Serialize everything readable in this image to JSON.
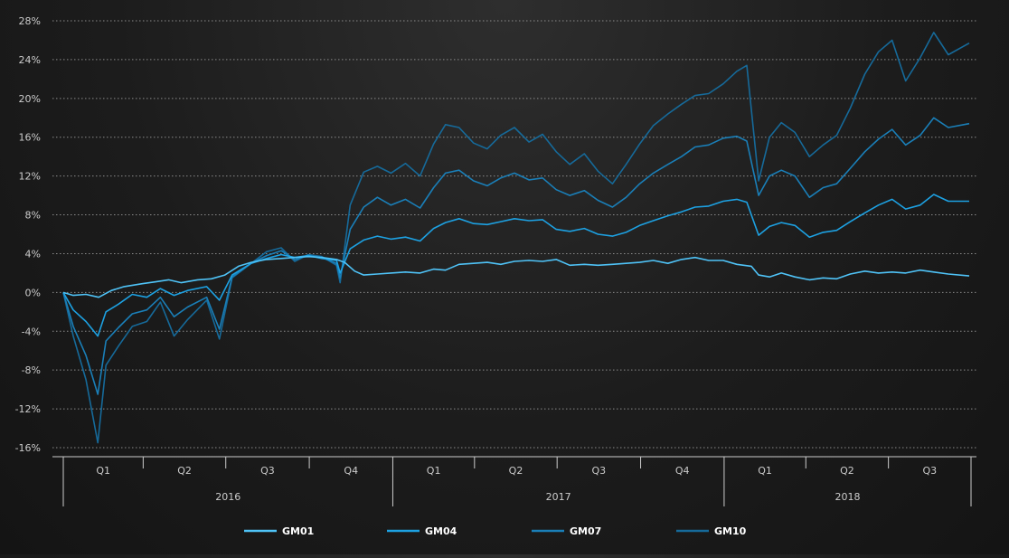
{
  "chart_data": {
    "type": "line",
    "title": "",
    "xlabel": "",
    "ylabel": "",
    "ylim": [
      -16,
      28
    ],
    "y_ticks": [
      -16,
      -12,
      -8,
      -4,
      0,
      4,
      8,
      12,
      16,
      20,
      24,
      28
    ],
    "y_tick_suffix": "%",
    "grid": "horizontal dotted",
    "legend_position": "bottom",
    "x_range": [
      "2016-01-04",
      "2018-09-28"
    ],
    "quarter_labels": [
      "Q1",
      "Q2",
      "Q3",
      "Q4",
      "Q1",
      "Q2",
      "Q3",
      "Q4",
      "Q1",
      "Q2",
      "Q3"
    ],
    "year_labels": [
      "2016",
      "2017",
      "2018"
    ],
    "colors": {
      "GM01": "#4fc3f7",
      "GM04": "#1da1e2",
      "GM07": "#1a7fb8",
      "GM10": "#166a9a",
      "axis": "#cccccc",
      "grid": "#8a8a8a"
    },
    "series": [
      {
        "name": "GM01",
        "points": [
          [
            "2016-01-04",
            0
          ],
          [
            "2016-01-15",
            -0.3
          ],
          [
            "2016-01-29",
            -0.2
          ],
          [
            "2016-02-12",
            -0.5
          ],
          [
            "2016-02-26",
            0.2
          ],
          [
            "2016-03-11",
            0.6
          ],
          [
            "2016-03-31",
            0.9
          ],
          [
            "2016-04-15",
            1.1
          ],
          [
            "2016-04-29",
            1.3
          ],
          [
            "2016-05-13",
            1.0
          ],
          [
            "2016-05-31",
            1.3
          ],
          [
            "2016-06-15",
            1.4
          ],
          [
            "2016-06-30",
            1.8
          ],
          [
            "2016-07-15",
            2.7
          ],
          [
            "2016-07-29",
            3.1
          ],
          [
            "2016-08-15",
            3.4
          ],
          [
            "2016-08-31",
            3.5
          ],
          [
            "2016-09-15",
            3.6
          ],
          [
            "2016-09-30",
            3.7
          ],
          [
            "2016-10-15",
            3.6
          ],
          [
            "2016-10-31",
            3.4
          ],
          [
            "2016-11-09",
            3.1
          ],
          [
            "2016-11-20",
            2.2
          ],
          [
            "2016-11-30",
            1.8
          ],
          [
            "2016-12-15",
            1.9
          ],
          [
            "2016-12-30",
            2.0
          ],
          [
            "2017-01-15",
            2.1
          ],
          [
            "2017-01-31",
            2.0
          ],
          [
            "2017-02-15",
            2.4
          ],
          [
            "2017-02-28",
            2.3
          ],
          [
            "2017-03-15",
            2.9
          ],
          [
            "2017-03-31",
            3.0
          ],
          [
            "2017-04-15",
            3.1
          ],
          [
            "2017-04-30",
            2.9
          ],
          [
            "2017-05-15",
            3.2
          ],
          [
            "2017-05-31",
            3.3
          ],
          [
            "2017-06-15",
            3.2
          ],
          [
            "2017-06-30",
            3.4
          ],
          [
            "2017-07-15",
            2.8
          ],
          [
            "2017-07-31",
            2.9
          ],
          [
            "2017-08-15",
            2.8
          ],
          [
            "2017-08-31",
            2.9
          ],
          [
            "2017-09-15",
            3.0
          ],
          [
            "2017-09-30",
            3.1
          ],
          [
            "2017-10-15",
            3.3
          ],
          [
            "2017-10-31",
            3.0
          ],
          [
            "2017-11-15",
            3.4
          ],
          [
            "2017-11-30",
            3.6
          ],
          [
            "2017-12-15",
            3.3
          ],
          [
            "2017-12-31",
            3.3
          ],
          [
            "2018-01-15",
            2.9
          ],
          [
            "2018-01-31",
            2.7
          ],
          [
            "2018-02-08",
            1.8
          ],
          [
            "2018-02-20",
            1.6
          ],
          [
            "2018-03-05",
            2.0
          ],
          [
            "2018-03-20",
            1.6
          ],
          [
            "2018-04-05",
            1.3
          ],
          [
            "2018-04-20",
            1.5
          ],
          [
            "2018-05-05",
            1.4
          ],
          [
            "2018-05-20",
            1.9
          ],
          [
            "2018-06-05",
            2.2
          ],
          [
            "2018-06-20",
            2.0
          ],
          [
            "2018-07-05",
            2.1
          ],
          [
            "2018-07-20",
            2.0
          ],
          [
            "2018-08-05",
            2.3
          ],
          [
            "2018-08-20",
            2.1
          ],
          [
            "2018-09-05",
            1.9
          ],
          [
            "2018-09-28",
            1.7
          ]
        ]
      },
      {
        "name": "GM04",
        "points": [
          [
            "2016-01-04",
            0
          ],
          [
            "2016-01-15",
            -1.8
          ],
          [
            "2016-01-29",
            -3.0
          ],
          [
            "2016-02-11",
            -4.5
          ],
          [
            "2016-02-20",
            -2.0
          ],
          [
            "2016-03-05",
            -1.2
          ],
          [
            "2016-03-20",
            -0.2
          ],
          [
            "2016-04-05",
            -0.5
          ],
          [
            "2016-04-20",
            0.4
          ],
          [
            "2016-05-05",
            -0.3
          ],
          [
            "2016-05-20",
            0.2
          ],
          [
            "2016-06-10",
            0.6
          ],
          [
            "2016-06-24",
            -0.8
          ],
          [
            "2016-07-08",
            1.8
          ],
          [
            "2016-07-29",
            3.0
          ],
          [
            "2016-08-15",
            3.5
          ],
          [
            "2016-08-31",
            3.9
          ],
          [
            "2016-09-15",
            3.6
          ],
          [
            "2016-09-30",
            3.8
          ],
          [
            "2016-10-15",
            3.5
          ],
          [
            "2016-10-31",
            3.3
          ],
          [
            "2016-11-04",
            2.0
          ],
          [
            "2016-11-15",
            4.5
          ],
          [
            "2016-11-30",
            5.4
          ],
          [
            "2016-12-15",
            5.8
          ],
          [
            "2016-12-30",
            5.5
          ],
          [
            "2017-01-15",
            5.7
          ],
          [
            "2017-01-31",
            5.3
          ],
          [
            "2017-02-15",
            6.6
          ],
          [
            "2017-02-28",
            7.2
          ],
          [
            "2017-03-15",
            7.6
          ],
          [
            "2017-03-31",
            7.1
          ],
          [
            "2017-04-15",
            7.0
          ],
          [
            "2017-04-30",
            7.3
          ],
          [
            "2017-05-15",
            7.6
          ],
          [
            "2017-05-31",
            7.4
          ],
          [
            "2017-06-15",
            7.5
          ],
          [
            "2017-06-30",
            6.5
          ],
          [
            "2017-07-15",
            6.3
          ],
          [
            "2017-07-31",
            6.6
          ],
          [
            "2017-08-15",
            6.0
          ],
          [
            "2017-08-31",
            5.8
          ],
          [
            "2017-09-15",
            6.2
          ],
          [
            "2017-09-30",
            6.9
          ],
          [
            "2017-10-15",
            7.4
          ],
          [
            "2017-10-31",
            7.9
          ],
          [
            "2017-11-15",
            8.3
          ],
          [
            "2017-11-30",
            8.8
          ],
          [
            "2017-12-15",
            8.9
          ],
          [
            "2017-12-31",
            9.4
          ],
          [
            "2018-01-15",
            9.6
          ],
          [
            "2018-01-26",
            9.3
          ],
          [
            "2018-02-08",
            5.9
          ],
          [
            "2018-02-20",
            6.8
          ],
          [
            "2018-03-05",
            7.2
          ],
          [
            "2018-03-20",
            6.9
          ],
          [
            "2018-04-05",
            5.7
          ],
          [
            "2018-04-20",
            6.2
          ],
          [
            "2018-05-05",
            6.4
          ],
          [
            "2018-05-20",
            7.3
          ],
          [
            "2018-06-05",
            8.2
          ],
          [
            "2018-06-20",
            9.0
          ],
          [
            "2018-07-05",
            9.6
          ],
          [
            "2018-07-20",
            8.6
          ],
          [
            "2018-08-05",
            9.0
          ],
          [
            "2018-08-20",
            10.1
          ],
          [
            "2018-09-05",
            9.4
          ],
          [
            "2018-09-28",
            9.4
          ]
        ]
      },
      {
        "name": "GM07",
        "points": [
          [
            "2016-01-04",
            0
          ],
          [
            "2016-01-15",
            -3.5
          ],
          [
            "2016-01-29",
            -6.5
          ],
          [
            "2016-02-11",
            -10.5
          ],
          [
            "2016-02-20",
            -5.0
          ],
          [
            "2016-03-05",
            -3.6
          ],
          [
            "2016-03-20",
            -2.2
          ],
          [
            "2016-04-05",
            -1.8
          ],
          [
            "2016-04-20",
            -0.5
          ],
          [
            "2016-05-05",
            -2.5
          ],
          [
            "2016-05-20",
            -1.5
          ],
          [
            "2016-06-10",
            -0.5
          ],
          [
            "2016-06-24",
            -3.8
          ],
          [
            "2016-07-08",
            1.6
          ],
          [
            "2016-07-29",
            3.0
          ],
          [
            "2016-08-15",
            3.8
          ],
          [
            "2016-08-31",
            4.3
          ],
          [
            "2016-09-15",
            3.4
          ],
          [
            "2016-09-30",
            3.8
          ],
          [
            "2016-10-15",
            3.6
          ],
          [
            "2016-10-31",
            3.0
          ],
          [
            "2016-11-04",
            1.5
          ],
          [
            "2016-11-15",
            6.5
          ],
          [
            "2016-11-30",
            8.8
          ],
          [
            "2016-12-15",
            9.8
          ],
          [
            "2016-12-30",
            9.0
          ],
          [
            "2017-01-15",
            9.6
          ],
          [
            "2017-01-31",
            8.7
          ],
          [
            "2017-02-15",
            10.8
          ],
          [
            "2017-02-28",
            12.3
          ],
          [
            "2017-03-15",
            12.6
          ],
          [
            "2017-03-31",
            11.5
          ],
          [
            "2017-04-15",
            11.0
          ],
          [
            "2017-04-30",
            11.8
          ],
          [
            "2017-05-15",
            12.3
          ],
          [
            "2017-05-31",
            11.6
          ],
          [
            "2017-06-15",
            11.8
          ],
          [
            "2017-06-30",
            10.6
          ],
          [
            "2017-07-15",
            10.0
          ],
          [
            "2017-07-31",
            10.5
          ],
          [
            "2017-08-15",
            9.5
          ],
          [
            "2017-08-31",
            8.8
          ],
          [
            "2017-09-15",
            9.8
          ],
          [
            "2017-09-30",
            11.2
          ],
          [
            "2017-10-15",
            12.3
          ],
          [
            "2017-10-31",
            13.2
          ],
          [
            "2017-11-15",
            14.0
          ],
          [
            "2017-11-30",
            15.0
          ],
          [
            "2017-12-15",
            15.2
          ],
          [
            "2017-12-31",
            15.9
          ],
          [
            "2018-01-15",
            16.1
          ],
          [
            "2018-01-26",
            15.6
          ],
          [
            "2018-02-08",
            10.0
          ],
          [
            "2018-02-20",
            12.0
          ],
          [
            "2018-03-05",
            12.6
          ],
          [
            "2018-03-20",
            12.0
          ],
          [
            "2018-04-05",
            9.8
          ],
          [
            "2018-04-20",
            10.8
          ],
          [
            "2018-05-05",
            11.2
          ],
          [
            "2018-05-20",
            12.8
          ],
          [
            "2018-06-05",
            14.5
          ],
          [
            "2018-06-20",
            15.8
          ],
          [
            "2018-07-05",
            16.8
          ],
          [
            "2018-07-20",
            15.2
          ],
          [
            "2018-08-05",
            16.2
          ],
          [
            "2018-08-20",
            18.0
          ],
          [
            "2018-09-05",
            17.0
          ],
          [
            "2018-09-28",
            17.4
          ]
        ]
      },
      {
        "name": "GM10",
        "points": [
          [
            "2016-01-04",
            0
          ],
          [
            "2016-01-15",
            -4.5
          ],
          [
            "2016-01-29",
            -9.0
          ],
          [
            "2016-02-11",
            -15.5
          ],
          [
            "2016-02-20",
            -7.5
          ],
          [
            "2016-03-05",
            -5.5
          ],
          [
            "2016-03-20",
            -3.5
          ],
          [
            "2016-04-05",
            -3.0
          ],
          [
            "2016-04-20",
            -1.0
          ],
          [
            "2016-05-05",
            -4.5
          ],
          [
            "2016-05-20",
            -2.8
          ],
          [
            "2016-06-10",
            -0.8
          ],
          [
            "2016-06-24",
            -4.8
          ],
          [
            "2016-07-08",
            1.5
          ],
          [
            "2016-07-29",
            3.0
          ],
          [
            "2016-08-15",
            4.2
          ],
          [
            "2016-08-31",
            4.6
          ],
          [
            "2016-09-15",
            3.2
          ],
          [
            "2016-09-30",
            3.9
          ],
          [
            "2016-10-15",
            3.7
          ],
          [
            "2016-10-31",
            2.8
          ],
          [
            "2016-11-04",
            1.0
          ],
          [
            "2016-11-15",
            9.0
          ],
          [
            "2016-11-30",
            12.4
          ],
          [
            "2016-12-15",
            13.0
          ],
          [
            "2016-12-30",
            12.3
          ],
          [
            "2017-01-15",
            13.3
          ],
          [
            "2017-01-31",
            12.0
          ],
          [
            "2017-02-15",
            15.3
          ],
          [
            "2017-02-28",
            17.3
          ],
          [
            "2017-03-15",
            17.0
          ],
          [
            "2017-03-31",
            15.4
          ],
          [
            "2017-04-15",
            14.8
          ],
          [
            "2017-04-30",
            16.2
          ],
          [
            "2017-05-15",
            17.0
          ],
          [
            "2017-05-31",
            15.5
          ],
          [
            "2017-06-15",
            16.3
          ],
          [
            "2017-06-30",
            14.5
          ],
          [
            "2017-07-15",
            13.2
          ],
          [
            "2017-07-31",
            14.3
          ],
          [
            "2017-08-15",
            12.5
          ],
          [
            "2017-08-31",
            11.2
          ],
          [
            "2017-09-15",
            13.2
          ],
          [
            "2017-09-30",
            15.3
          ],
          [
            "2017-10-15",
            17.2
          ],
          [
            "2017-10-31",
            18.4
          ],
          [
            "2017-11-15",
            19.4
          ],
          [
            "2017-11-30",
            20.3
          ],
          [
            "2017-12-15",
            20.5
          ],
          [
            "2017-12-31",
            21.5
          ],
          [
            "2018-01-15",
            22.8
          ],
          [
            "2018-01-26",
            23.4
          ],
          [
            "2018-02-08",
            11.5
          ],
          [
            "2018-02-20",
            16.0
          ],
          [
            "2018-03-05",
            17.5
          ],
          [
            "2018-03-20",
            16.5
          ],
          [
            "2018-04-05",
            14.0
          ],
          [
            "2018-04-20",
            15.2
          ],
          [
            "2018-05-05",
            16.2
          ],
          [
            "2018-05-20",
            19.0
          ],
          [
            "2018-06-05",
            22.5
          ],
          [
            "2018-06-20",
            24.8
          ],
          [
            "2018-07-05",
            26.0
          ],
          [
            "2018-07-20",
            21.8
          ],
          [
            "2018-08-05",
            24.2
          ],
          [
            "2018-08-20",
            26.8
          ],
          [
            "2018-09-05",
            24.5
          ],
          [
            "2018-09-28",
            25.7
          ]
        ]
      }
    ]
  }
}
